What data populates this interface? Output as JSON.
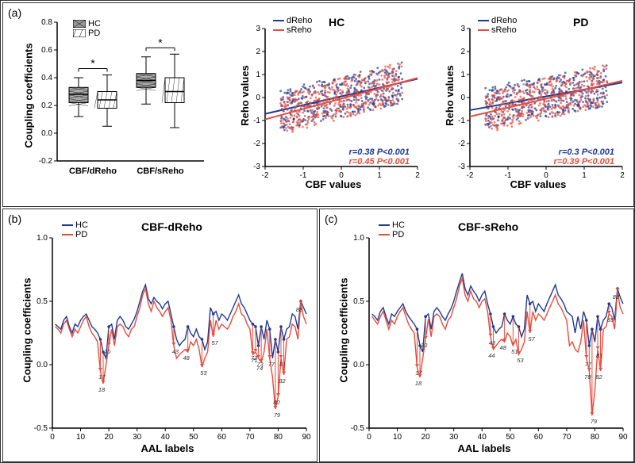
{
  "panel_a": {
    "label": "(a)",
    "boxplot": {
      "type": "boxplot",
      "ylabel": "Coupling coefficients",
      "ylim": [
        -0.2,
        0.8
      ],
      "yticks": [
        -0.2,
        0.0,
        0.2,
        0.4,
        0.6,
        0.8
      ],
      "categories": [
        "CBF/dReho",
        "CBF/sReho"
      ],
      "groups": [
        "HC",
        "PD"
      ],
      "colors": {
        "HC": "#888888",
        "PD": "#ffffff"
      },
      "boxes": {
        "CBF/dReho": {
          "HC": {
            "q1": 0.22,
            "median": 0.28,
            "q3": 0.33,
            "whisker_low": 0.12,
            "whisker_high": 0.4
          },
          "PD": {
            "q1": 0.18,
            "median": 0.24,
            "q3": 0.3,
            "whisker_low": 0.05,
            "whisker_high": 0.42
          }
        },
        "CBF/sReho": {
          "HC": {
            "q1": 0.33,
            "median": 0.38,
            "q3": 0.43,
            "whisker_low": 0.21,
            "whisker_high": 0.55
          },
          "PD": {
            "q1": 0.22,
            "median": 0.3,
            "q3": 0.4,
            "whisker_low": 0.04,
            "whisker_high": 0.57
          }
        }
      },
      "sig_marker": "*"
    },
    "scatter_hc": {
      "type": "scatter",
      "title": "HC",
      "xlabel": "CBF values",
      "ylabel": "Reho values",
      "xlim": [
        -2,
        2
      ],
      "ylim": [
        -3,
        3
      ],
      "xticks": [
        -2,
        -1,
        0,
        1,
        2
      ],
      "yticks": [
        -3,
        -2,
        -1,
        0,
        1,
        2,
        3
      ],
      "series": [
        {
          "name": "dReho",
          "color": "#1f3a93",
          "r": 0.38,
          "p": "<0.001",
          "slope": 0.38,
          "intercept": 0.05
        },
        {
          "name": "sReho",
          "color": "#e74c3c",
          "r": 0.45,
          "p": "<0.001",
          "slope": 0.45,
          "intercept": -0.05
        }
      ]
    },
    "scatter_pd": {
      "type": "scatter",
      "title": "PD",
      "xlabel": "CBF values",
      "ylabel": "Reho values",
      "xlim": [
        -2,
        2
      ],
      "ylim": [
        -3,
        3
      ],
      "xticks": [
        -2,
        -1,
        0,
        1,
        2
      ],
      "yticks": [
        -3,
        -2,
        -1,
        0,
        1,
        2,
        3
      ],
      "series": [
        {
          "name": "dReho",
          "color": "#1f3a93",
          "r": 0.3,
          "p": "<0.001",
          "slope": 0.3,
          "intercept": 0.05
        },
        {
          "name": "sReho",
          "color": "#e74c3c",
          "r": 0.39,
          "p": "<0.001",
          "slope": 0.39,
          "intercept": -0.05
        }
      ]
    }
  },
  "panel_b": {
    "label": "(b)",
    "type": "line",
    "title": "CBF-dReho",
    "xlabel": "AAL labels",
    "ylabel": "Coupling coefficients",
    "xlim": [
      0,
      90
    ],
    "ylim": [
      -0.5,
      1.0
    ],
    "xticks": [
      0,
      10,
      20,
      30,
      40,
      50,
      60,
      70,
      80,
      90
    ],
    "yticks": [
      -0.5,
      0.0,
      0.5,
      1.0
    ],
    "series_labels": {
      "HC": "HC",
      "PD": "PD"
    },
    "colors": {
      "HC": "#1f3a93",
      "PD": "#e74c3c"
    },
    "hc_values": [
      0.32,
      0.3,
      0.28,
      0.35,
      0.38,
      0.3,
      0.25,
      0.32,
      0.3,
      0.35,
      0.38,
      0.4,
      0.35,
      0.3,
      0.28,
      0.25,
      0.2,
      0.1,
      0.05,
      0.3,
      0.32,
      0.2,
      0.35,
      0.38,
      0.35,
      0.3,
      0.28,
      0.32,
      0.36,
      0.42,
      0.5,
      0.58,
      0.63,
      0.52,
      0.48,
      0.53,
      0.5,
      0.48,
      0.44,
      0.48,
      0.5,
      0.4,
      0.3,
      0.2,
      0.15,
      0.18,
      0.2,
      0.3,
      0.25,
      0.22,
      0.28,
      0.22,
      0.2,
      0.12,
      0.18,
      0.45,
      0.4,
      0.42,
      0.35,
      0.4,
      0.38,
      0.35,
      0.4,
      0.45,
      0.5,
      0.55,
      0.48,
      0.45,
      0.4,
      0.35,
      0.32,
      0.3,
      0.15,
      0.3,
      0.2,
      0.35,
      0.28,
      0.05,
      0.2,
      0.1,
      0.3,
      0.2,
      0.28,
      0.3,
      0.4,
      0.38,
      0.28,
      0.5,
      0.45,
      0.4
    ],
    "pd_values": [
      0.3,
      0.28,
      0.25,
      0.32,
      0.35,
      0.28,
      0.22,
      0.28,
      0.25,
      0.3,
      0.35,
      0.38,
      0.3,
      0.25,
      0.22,
      0.18,
      -0.05,
      -0.15,
      0.0,
      0.15,
      0.28,
      0.15,
      0.3,
      0.32,
      0.3,
      0.25,
      0.22,
      0.28,
      0.3,
      0.38,
      0.45,
      0.55,
      0.6,
      0.48,
      0.42,
      0.5,
      0.45,
      0.42,
      0.38,
      0.42,
      0.45,
      0.35,
      0.15,
      0.05,
      0.08,
      0.1,
      0.12,
      0.1,
      0.18,
      0.15,
      0.2,
      0.12,
      -0.02,
      0.05,
      0.1,
      0.35,
      0.22,
      0.35,
      0.28,
      0.32,
      0.3,
      0.28,
      0.32,
      0.38,
      0.42,
      0.48,
      0.4,
      0.38,
      0.32,
      0.28,
      0.08,
      0.1,
      0.05,
      0.02,
      0.1,
      0.28,
      0.05,
      -0.1,
      -0.35,
      -0.25,
      0.05,
      -0.08,
      0.2,
      0.22,
      0.32,
      0.3,
      0.2,
      0.48,
      0.38,
      0.32
    ],
    "annotations": [
      17,
      18,
      20,
      43,
      48,
      53,
      57,
      71,
      72,
      73,
      74,
      77,
      79,
      80,
      81,
      82,
      88
    ]
  },
  "panel_c": {
    "label": "(c)",
    "type": "line",
    "title": "CBF-sReho",
    "xlabel": "AAL labels",
    "ylabel": "Coupling coefficients",
    "xlim": [
      0,
      90
    ],
    "ylim": [
      -0.5,
      1.0
    ],
    "xticks": [
      0,
      10,
      20,
      30,
      40,
      50,
      60,
      70,
      80,
      90
    ],
    "yticks": [
      -0.5,
      0.0,
      0.5,
      1.0
    ],
    "series_labels": {
      "HC": "HC",
      "PD": "PD"
    },
    "colors": {
      "HC": "#1f3a93",
      "PD": "#e74c3c"
    },
    "hc_values": [
      0.4,
      0.38,
      0.35,
      0.42,
      0.45,
      0.38,
      0.32,
      0.4,
      0.38,
      0.42,
      0.45,
      0.48,
      0.42,
      0.38,
      0.35,
      0.32,
      0.28,
      0.15,
      0.1,
      0.38,
      0.4,
      0.28,
      0.42,
      0.45,
      0.42,
      0.38,
      0.35,
      0.4,
      0.44,
      0.5,
      0.58,
      0.65,
      0.72,
      0.6,
      0.55,
      0.62,
      0.58,
      0.55,
      0.5,
      0.55,
      0.58,
      0.48,
      0.4,
      0.3,
      0.25,
      0.28,
      0.3,
      0.4,
      0.35,
      0.32,
      0.38,
      0.32,
      0.3,
      0.22,
      0.28,
      0.55,
      0.48,
      0.5,
      0.42,
      0.48,
      0.45,
      0.42,
      0.48,
      0.53,
      0.58,
      0.63,
      0.55,
      0.52,
      0.48,
      0.42,
      0.4,
      0.38,
      0.25,
      0.38,
      0.28,
      0.42,
      0.35,
      0.15,
      0.28,
      0.18,
      0.38,
      0.28,
      0.35,
      0.38,
      0.48,
      0.45,
      0.35,
      0.6,
      0.53,
      0.48
    ],
    "pd_values": [
      0.38,
      0.35,
      0.32,
      0.38,
      0.42,
      0.35,
      0.28,
      0.35,
      0.32,
      0.38,
      0.42,
      0.45,
      0.38,
      0.32,
      0.28,
      0.25,
      -0.02,
      -0.1,
      0.05,
      0.2,
      0.36,
      0.22,
      0.38,
      0.4,
      0.38,
      0.32,
      0.28,
      0.35,
      0.38,
      0.45,
      0.52,
      0.62,
      0.68,
      0.55,
      0.5,
      0.58,
      0.52,
      0.5,
      0.45,
      0.5,
      0.52,
      0.42,
      0.22,
      0.12,
      0.15,
      0.18,
      0.2,
      0.18,
      0.25,
      0.22,
      0.15,
      0.2,
      0.08,
      0.12,
      0.18,
      0.42,
      0.25,
      0.42,
      0.35,
      0.4,
      0.38,
      0.35,
      0.4,
      0.45,
      0.5,
      0.55,
      0.48,
      0.45,
      0.4,
      0.35,
      0.15,
      0.18,
      0.12,
      0.1,
      0.18,
      0.35,
      0.05,
      -0.05,
      -0.4,
      -0.2,
      0.12,
      -0.05,
      0.28,
      0.3,
      0.4,
      0.38,
      0.28,
      0.58,
      0.45,
      0.4
    ],
    "annotations": [
      17,
      18,
      20,
      43,
      44,
      48,
      51,
      53,
      57,
      77,
      78,
      79,
      81,
      82,
      85,
      88
    ]
  }
}
